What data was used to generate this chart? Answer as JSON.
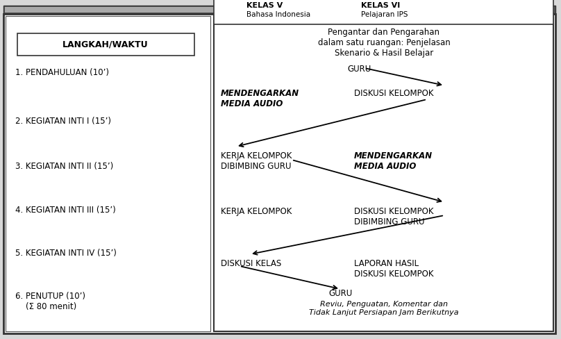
{
  "bg_color": "#d8d8d8",
  "outer_bg": "#ffffff",
  "left_bg": "#ffffff",
  "right_bg": "#ffffff",
  "border_color": "#000000",
  "header_label": "LANGKAH/WAKTU",
  "steps": [
    "1. PENDAHULUAN (10’)",
    "2. KEGIATAN INTI I (15’)",
    "3. KEGIATAN INTI II (15’)",
    "4. KEGIATAN INTI III (15’)",
    "5. KEGIATAN INTI IV (15’)",
    "6. PENUTUP (10’)\n    (Σ 80 menit)"
  ],
  "kelas_v_label": "KELAS V",
  "kelas_v_sub": "Bahasa Indonesia",
  "kelas_vi_label": "KELAS VI",
  "kelas_vi_sub": "Pelajaran IPS",
  "intro_text": "Pengantar dan Pengarahan\ndalam satu ruangan: Penjelasan\nSkenario & Hasil Belajar",
  "closing_text": "Reviu, Penguatan, Komentar dan\nTidak Lanjut Persiapan Jam Berikutnya",
  "guru_top": "GURU",
  "guru_bottom": "GURU",
  "act_left": [
    "MENDENGARKAN\nMEDIA AUDIO",
    "KERJA KELOMPOK\nDIBIMBING GURU",
    "KERJA KELOMPOK",
    "DISKUSI KELAS"
  ],
  "act_right": [
    "DISKUSI KELOMPOK",
    "MENDENGARKAN\nMEDIA AUDIO",
    "DISKUSI KELOMPOK\nDIBIMBING GURU",
    "LAPORAN HASIL\nDISKUSI KELOMPOK"
  ],
  "act_left_italic": [
    true,
    false,
    false,
    false
  ],
  "act_right_italic": [
    false,
    true,
    false,
    false
  ]
}
